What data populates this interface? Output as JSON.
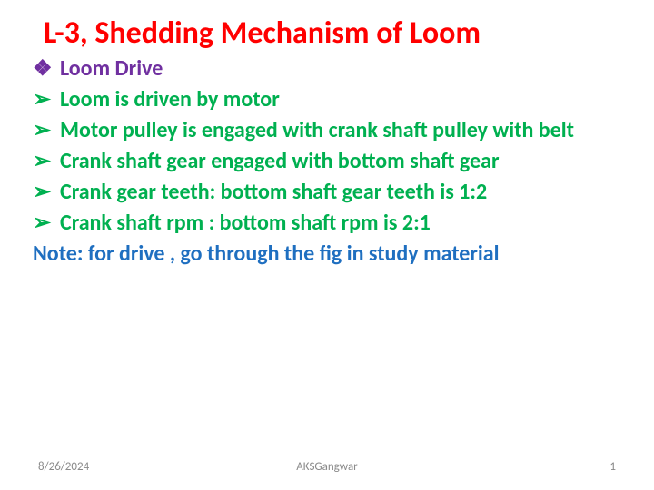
{
  "title": {
    "text": "L-3, Shedding Mechanism of Loom",
    "color": "#ff0000",
    "fontsize": 34
  },
  "heading": {
    "text": "Loom Drive",
    "color": "#7030a0",
    "bullet_color": "#7030a0",
    "fontsize": 24
  },
  "bullets": [
    {
      "text": "Loom is driven by motor"
    },
    {
      "text": "Motor pulley is engaged with crank shaft pulley with belt"
    },
    {
      "text": "Crank shaft gear engaged with bottom shaft gear"
    },
    {
      "text": "Crank gear teeth: bottom shaft gear teeth is 1:2"
    },
    {
      "text": "Crank shaft rpm : bottom shaft rpm is 2:1"
    }
  ],
  "bullet_style": {
    "text_color": "#00b050",
    "arrow_color": "#00b050",
    "fontsize": 24
  },
  "note": {
    "text": "Note: for drive , go through the fig in study material",
    "color": "#1f6fc0",
    "fontsize": 24
  },
  "footer": {
    "date": "8/26/2024",
    "author": "AKSGangwar",
    "page": "1",
    "color": "#8a8a8a",
    "fontsize": 13
  },
  "background_color": "#ffffff"
}
